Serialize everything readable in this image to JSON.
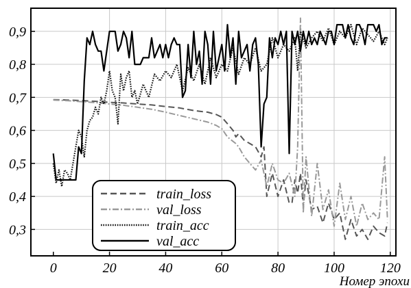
{
  "chart_data": {
    "type": "line",
    "xlabel": "Номер эпохи",
    "ylabel": "",
    "xlim": [
      -8,
      122
    ],
    "ylim": [
      0.22,
      0.97
    ],
    "xticks": [
      "0",
      "20",
      "40",
      "60",
      "80",
      "100",
      "120"
    ],
    "yticks": [
      "0,3",
      "0,4",
      "0,5",
      "0,6",
      "0,7",
      "0,8",
      "0,9"
    ],
    "grid": true,
    "legend_position": "bottom-left",
    "series": [
      {
        "name": "train_loss",
        "style": "dashed",
        "color": "#555555",
        "x": [
          0,
          5,
          10,
          15,
          20,
          25,
          30,
          35,
          40,
          45,
          50,
          52,
          55,
          58,
          60,
          62,
          64,
          65,
          66,
          68,
          70,
          72,
          74,
          75,
          76,
          78,
          80,
          82,
          84,
          85,
          86,
          87,
          88,
          89,
          90,
          92,
          94,
          96,
          98,
          100,
          102,
          104,
          106,
          108,
          110,
          112,
          114,
          116,
          118,
          119
        ],
        "y": [
          0.693,
          0.692,
          0.69,
          0.688,
          0.685,
          0.683,
          0.68,
          0.677,
          0.672,
          0.668,
          0.66,
          0.658,
          0.655,
          0.648,
          0.64,
          0.62,
          0.6,
          0.58,
          0.59,
          0.57,
          0.56,
          0.55,
          0.52,
          0.55,
          0.4,
          0.47,
          0.4,
          0.45,
          0.38,
          0.38,
          0.45,
          0.41,
          0.47,
          0.37,
          0.45,
          0.36,
          0.37,
          0.32,
          0.38,
          0.33,
          0.35,
          0.27,
          0.33,
          0.28,
          0.3,
          0.27,
          0.31,
          0.29,
          0.28,
          0.32
        ]
      },
      {
        "name": "val_loss",
        "style": "dashdot",
        "color": "#999999",
        "x": [
          0,
          5,
          10,
          15,
          20,
          25,
          30,
          35,
          40,
          45,
          50,
          55,
          58,
          60,
          62,
          65,
          66,
          68,
          70,
          72,
          74,
          76,
          78,
          80,
          82,
          84,
          86,
          87,
          88,
          89,
          90,
          92,
          94,
          96,
          98,
          100,
          102,
          104,
          106,
          108,
          110,
          112,
          114,
          116,
          118,
          119
        ],
        "y": [
          0.692,
          0.69,
          0.687,
          0.684,
          0.68,
          0.676,
          0.67,
          0.664,
          0.655,
          0.645,
          0.635,
          0.625,
          0.615,
          0.605,
          0.58,
          0.56,
          0.55,
          0.52,
          0.5,
          0.48,
          0.51,
          0.43,
          0.5,
          0.45,
          0.44,
          0.47,
          0.4,
          0.55,
          0.94,
          0.35,
          0.52,
          0.34,
          0.5,
          0.36,
          0.42,
          0.31,
          0.44,
          0.33,
          0.4,
          0.31,
          0.38,
          0.33,
          0.35,
          0.33,
          0.52,
          0.33
        ]
      },
      {
        "name": "train_acc",
        "style": "dotted",
        "color": "#111111",
        "x": [
          0,
          1,
          2,
          3,
          4,
          5,
          6,
          7,
          8,
          9,
          10,
          11,
          12,
          13,
          14,
          15,
          16,
          17,
          18,
          19,
          20,
          21,
          22,
          23,
          24,
          25,
          26,
          27,
          28,
          29,
          30,
          32,
          34,
          36,
          38,
          40,
          42,
          44,
          46,
          48,
          50,
          52,
          54,
          56,
          58,
          60,
          62,
          64,
          66,
          68,
          70,
          72,
          74,
          76,
          78,
          80,
          82,
          84,
          86,
          87,
          88,
          90,
          92,
          94,
          96,
          98,
          100,
          102,
          104,
          106,
          108,
          110,
          112,
          114,
          116,
          118,
          119
        ],
        "y": [
          0.5,
          0.44,
          0.48,
          0.43,
          0.48,
          0.47,
          0.45,
          0.5,
          0.55,
          0.6,
          0.58,
          0.52,
          0.6,
          0.63,
          0.64,
          0.67,
          0.65,
          0.7,
          0.68,
          0.72,
          0.78,
          0.72,
          0.7,
          0.62,
          0.77,
          0.72,
          0.76,
          0.78,
          0.7,
          0.72,
          0.68,
          0.74,
          0.7,
          0.77,
          0.75,
          0.78,
          0.76,
          0.8,
          0.72,
          0.79,
          0.75,
          0.8,
          0.74,
          0.82,
          0.76,
          0.8,
          0.78,
          0.85,
          0.77,
          0.82,
          0.8,
          0.85,
          0.78,
          0.8,
          0.88,
          0.82,
          0.86,
          0.84,
          0.88,
          0.78,
          0.9,
          0.85,
          0.88,
          0.9,
          0.87,
          0.91,
          0.86,
          0.9,
          0.88,
          0.92,
          0.86,
          0.91,
          0.89,
          0.87,
          0.9,
          0.86,
          0.88
        ]
      },
      {
        "name": "val_acc",
        "style": "solid",
        "color": "#000000",
        "x": [
          0,
          1,
          2,
          3,
          4,
          5,
          6,
          7,
          8,
          9,
          10,
          11,
          12,
          13,
          14,
          15,
          16,
          17,
          18,
          19,
          20,
          21,
          22,
          23,
          24,
          25,
          26,
          27,
          28,
          29,
          30,
          31,
          32,
          33,
          34,
          35,
          36,
          37,
          38,
          39,
          40,
          41,
          42,
          43,
          44,
          45,
          46,
          47,
          48,
          49,
          50,
          51,
          52,
          53,
          54,
          55,
          56,
          57,
          58,
          59,
          60,
          61,
          62,
          63,
          64,
          65,
          66,
          67,
          68,
          69,
          70,
          71,
          72,
          73,
          74,
          75,
          76,
          77,
          78,
          79,
          80,
          81,
          82,
          83,
          84,
          85,
          86,
          87,
          88,
          89,
          90,
          91,
          92,
          93,
          94,
          95,
          96,
          97,
          98,
          99,
          100,
          101,
          102,
          103,
          104,
          105,
          106,
          107,
          108,
          109,
          110,
          111,
          112,
          113,
          114,
          115,
          116,
          117,
          118,
          119
        ],
        "y": [
          0.53,
          0.45,
          0.45,
          0.45,
          0.45,
          0.45,
          0.45,
          0.45,
          0.45,
          0.55,
          0.53,
          0.75,
          0.88,
          0.86,
          0.9,
          0.86,
          0.84,
          0.84,
          0.78,
          0.84,
          0.9,
          0.9,
          0.9,
          0.84,
          0.86,
          0.9,
          0.88,
          0.82,
          0.9,
          0.8,
          0.8,
          0.8,
          0.82,
          0.82,
          0.82,
          0.88,
          0.82,
          0.84,
          0.86,
          0.82,
          0.86,
          0.82,
          0.86,
          0.88,
          0.86,
          0.86,
          0.7,
          0.72,
          0.86,
          0.76,
          0.9,
          0.8,
          0.84,
          0.74,
          0.9,
          0.86,
          0.74,
          0.9,
          0.78,
          0.82,
          0.86,
          0.78,
          0.92,
          0.82,
          0.88,
          0.74,
          0.9,
          0.82,
          0.84,
          0.86,
          0.78,
          0.86,
          0.88,
          0.8,
          0.55,
          0.68,
          0.7,
          0.88,
          0.82,
          0.88,
          0.86,
          0.9,
          0.86,
          0.9,
          0.53,
          0.9,
          0.86,
          0.9,
          0.84,
          0.9,
          0.86,
          0.9,
          0.86,
          0.88,
          0.86,
          0.9,
          0.88,
          0.86,
          0.9,
          0.9,
          0.86,
          0.92,
          0.92,
          0.92,
          0.88,
          0.92,
          0.88,
          0.86,
          0.92,
          0.92,
          0.9,
          0.86,
          0.92,
          0.92,
          0.92,
          0.9,
          0.92,
          0.86,
          0.88,
          0.88
        ]
      }
    ]
  }
}
